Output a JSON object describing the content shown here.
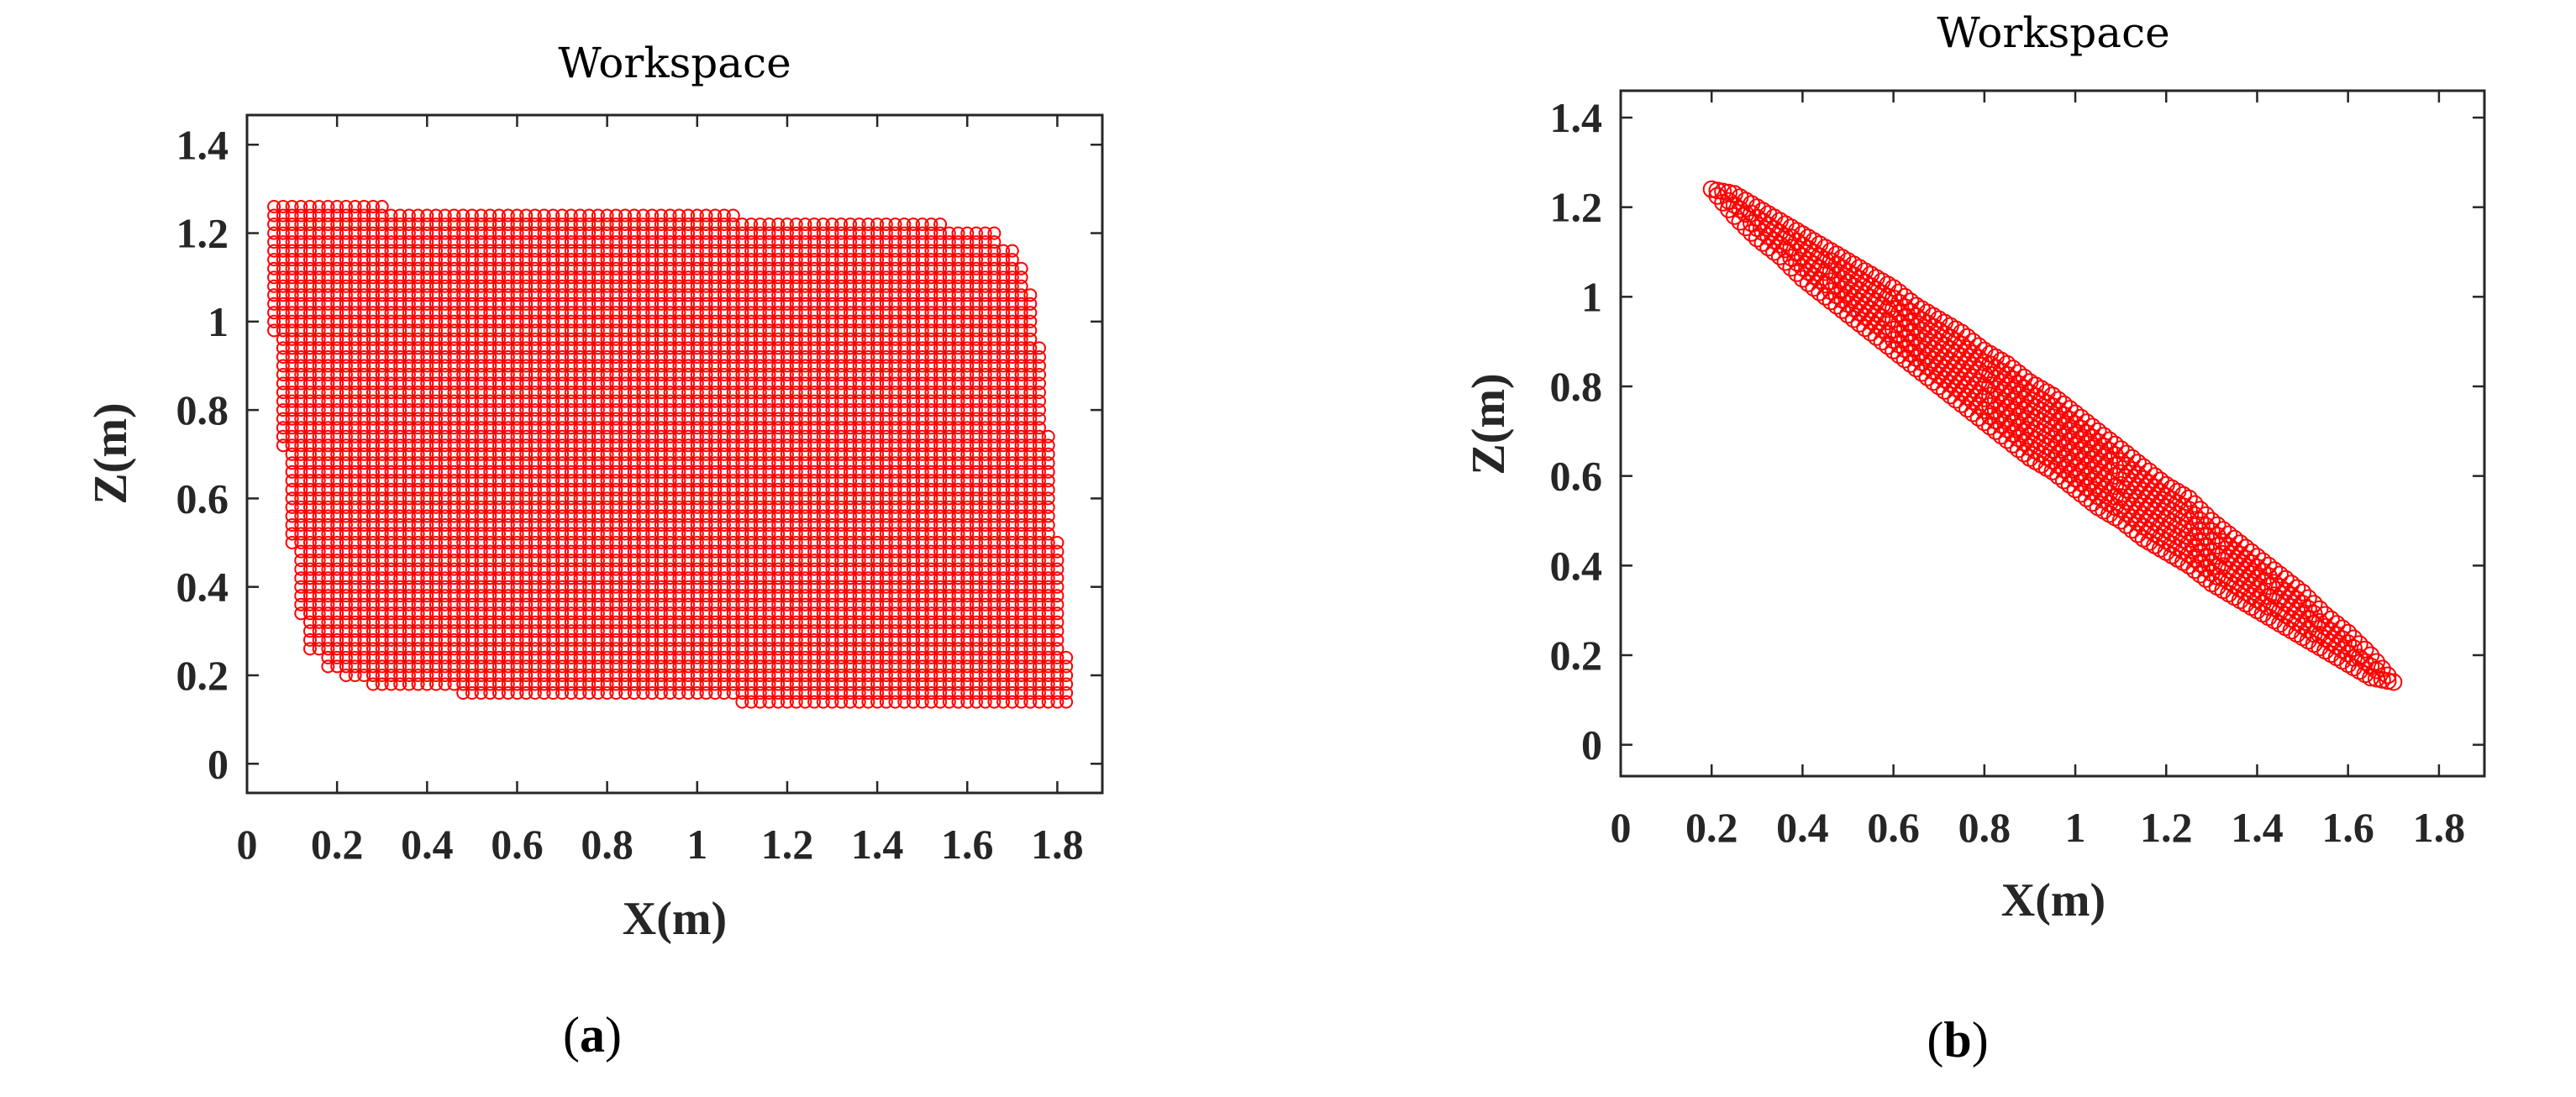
{
  "chart_data": [
    {
      "type": "scatter",
      "title": "Workspace",
      "xlabel": "X(m)",
      "ylabel": "Z(m)",
      "caption_open": "(",
      "caption_letter": "a",
      "caption_close": ")",
      "xlim": [
        0,
        1.9
      ],
      "ylim": [
        -0.066,
        1.467
      ],
      "xticks": [
        0,
        0.2,
        0.4,
        0.6,
        0.8,
        1,
        1.2,
        1.4,
        1.6,
        1.8
      ],
      "xtick_labels": [
        "0",
        "0.2",
        "0.4",
        "0.6",
        "0.8",
        "1",
        "1.2",
        "1.4",
        "1.6",
        "1.8"
      ],
      "yticks": [
        0,
        0.2,
        0.4,
        0.6,
        0.8,
        1,
        1.2,
        1.4
      ],
      "ytick_labels": [
        "0",
        "0.2",
        "0.4",
        "0.6",
        "0.8",
        "1",
        "1.2",
        "1.4"
      ],
      "marker": "circle-open",
      "color": "#ff0000",
      "grid": false,
      "grid_step": 0.02,
      "columns": [
        {
          "x": [
            0.06,
            0.06
          ],
          "z": [
            0.98,
            1.26
          ]
        },
        {
          "x": [
            0.08,
            0.08
          ],
          "z": [
            0.72,
            1.26
          ]
        },
        {
          "x": [
            0.1,
            0.1
          ],
          "z": [
            0.5,
            1.26
          ]
        },
        {
          "x": [
            0.12,
            0.12
          ],
          "z": [
            0.34,
            1.26
          ]
        },
        {
          "x": [
            0.14,
            0.16
          ],
          "z": [
            0.26,
            1.26
          ]
        },
        {
          "x": [
            0.18,
            0.2
          ],
          "z": [
            0.22,
            1.26
          ]
        },
        {
          "x": [
            0.22,
            0.26
          ],
          "z": [
            0.2,
            1.26
          ]
        },
        {
          "x": [
            0.28,
            0.3
          ],
          "z": [
            0.18,
            1.26
          ]
        },
        {
          "x": [
            0.32,
            0.46
          ],
          "z": [
            0.18,
            1.24
          ]
        },
        {
          "x": [
            0.48,
            1.08
          ],
          "z": [
            0.16,
            1.24
          ]
        },
        {
          "x": [
            1.1,
            1.54
          ],
          "z": [
            0.14,
            1.22
          ]
        },
        {
          "x": [
            1.56,
            1.66
          ],
          "z": [
            0.14,
            1.2
          ]
        },
        {
          "x": [
            1.68,
            1.7
          ],
          "z": [
            0.14,
            1.16
          ]
        },
        {
          "x": [
            1.72,
            1.72
          ],
          "z": [
            0.14,
            1.12
          ]
        },
        {
          "x": [
            1.74,
            1.74
          ],
          "z": [
            0.14,
            1.06
          ]
        },
        {
          "x": [
            1.76,
            1.76
          ],
          "z": [
            0.14,
            0.94
          ]
        },
        {
          "x": [
            1.78,
            1.78
          ],
          "z": [
            0.14,
            0.74
          ]
        },
        {
          "x": [
            1.8,
            1.8
          ],
          "z": [
            0.14,
            0.5
          ]
        },
        {
          "x": [
            1.82,
            1.82
          ],
          "z": [
            0.14,
            0.24
          ]
        }
      ]
    },
    {
      "type": "scatter",
      "title": "Workspace",
      "xlabel": "X(m)",
      "ylabel": "Z(m)",
      "caption_open": "(",
      "caption_letter": "b",
      "caption_close": ")",
      "xlim": [
        0,
        1.9
      ],
      "ylim": [
        -0.07,
        1.46
      ],
      "xticks": [
        0,
        0.2,
        0.4,
        0.6,
        0.8,
        1,
        1.2,
        1.4,
        1.6,
        1.8
      ],
      "xtick_labels": [
        "0",
        "0.2",
        "0.4",
        "0.6",
        "0.8",
        "1",
        "1.2",
        "1.4",
        "1.6",
        "1.8"
      ],
      "yticks": [
        0,
        0.2,
        0.4,
        0.6,
        0.8,
        1,
        1.2,
        1.4
      ],
      "ytick_labels": [
        "0",
        "0.2",
        "0.4",
        "0.6",
        "0.8",
        "1",
        "1.2",
        "1.4"
      ],
      "marker": "circle-open",
      "color": "#ff0000",
      "grid": false,
      "band_columns": [
        {
          "x": 0.2,
          "z": [
            1.24,
            1.24
          ]
        },
        {
          "x": 0.25,
          "z": [
            1.18,
            1.23
          ]
        },
        {
          "x": 0.3,
          "z": [
            1.13,
            1.2
          ]
        },
        {
          "x": 0.35,
          "z": [
            1.09,
            1.17
          ]
        },
        {
          "x": 0.4,
          "z": [
            1.04,
            1.14
          ]
        },
        {
          "x": 0.45,
          "z": [
            1.0,
            1.11
          ]
        },
        {
          "x": 0.5,
          "z": [
            0.96,
            1.08
          ]
        },
        {
          "x": 0.55,
          "z": [
            0.92,
            1.05
          ]
        },
        {
          "x": 0.6,
          "z": [
            0.88,
            1.02
          ]
        },
        {
          "x": 0.65,
          "z": [
            0.84,
            0.98
          ]
        },
        {
          "x": 0.7,
          "z": [
            0.8,
            0.95
          ]
        },
        {
          "x": 0.75,
          "z": [
            0.76,
            0.92
          ]
        },
        {
          "x": 0.8,
          "z": [
            0.72,
            0.88
          ]
        },
        {
          "x": 0.85,
          "z": [
            0.68,
            0.85
          ]
        },
        {
          "x": 0.9,
          "z": [
            0.64,
            0.81
          ]
        },
        {
          "x": 0.95,
          "z": [
            0.61,
            0.78
          ]
        },
        {
          "x": 1.0,
          "z": [
            0.57,
            0.74
          ]
        },
        {
          "x": 1.05,
          "z": [
            0.53,
            0.7
          ]
        },
        {
          "x": 1.1,
          "z": [
            0.5,
            0.66
          ]
        },
        {
          "x": 1.15,
          "z": [
            0.46,
            0.62
          ]
        },
        {
          "x": 1.2,
          "z": [
            0.43,
            0.58
          ]
        },
        {
          "x": 1.25,
          "z": [
            0.4,
            0.55
          ]
        },
        {
          "x": 1.3,
          "z": [
            0.36,
            0.5
          ]
        },
        {
          "x": 1.35,
          "z": [
            0.33,
            0.46
          ]
        },
        {
          "x": 1.4,
          "z": [
            0.3,
            0.42
          ]
        },
        {
          "x": 1.45,
          "z": [
            0.27,
            0.38
          ]
        },
        {
          "x": 1.5,
          "z": [
            0.24,
            0.34
          ]
        },
        {
          "x": 1.55,
          "z": [
            0.21,
            0.29
          ]
        },
        {
          "x": 1.6,
          "z": [
            0.18,
            0.25
          ]
        },
        {
          "x": 1.65,
          "z": [
            0.15,
            0.2
          ]
        },
        {
          "x": 1.7,
          "z": [
            0.14,
            0.14
          ]
        }
      ]
    }
  ]
}
